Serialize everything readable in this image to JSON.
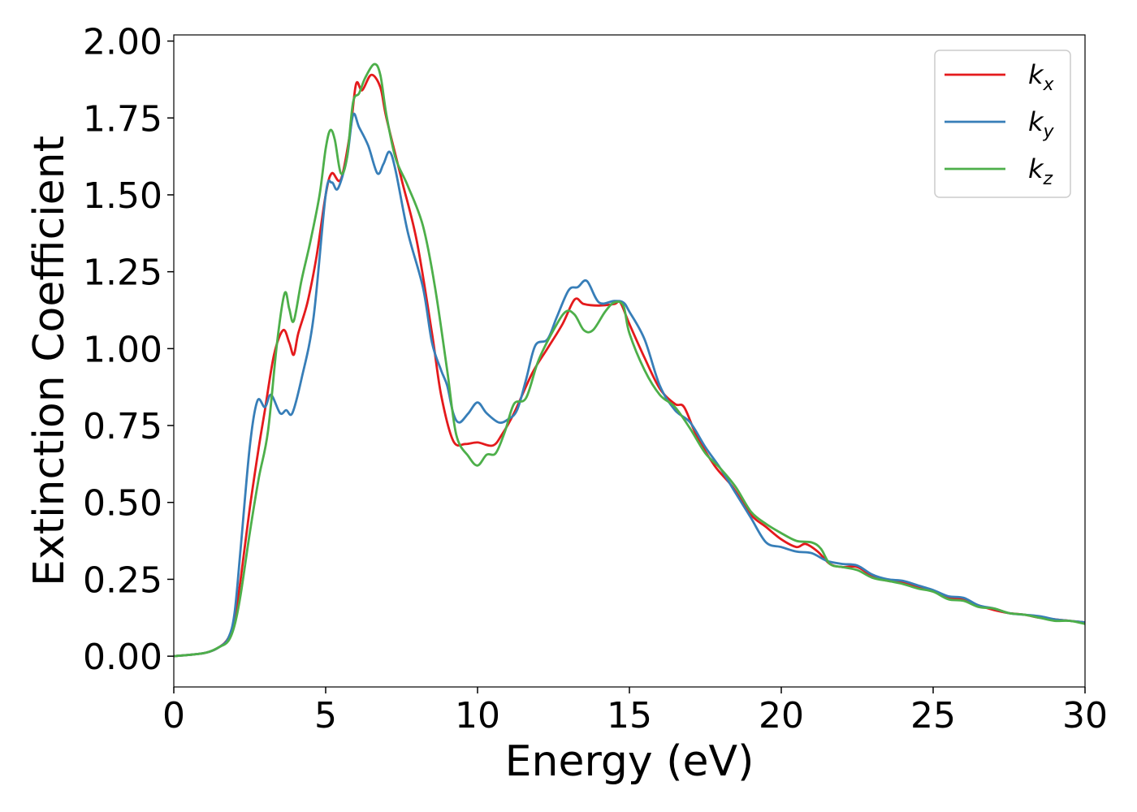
{
  "chart_data": {
    "type": "line",
    "xlabel": "Energy (eV)",
    "ylabel": "Extinction Coefficient",
    "xlim": [
      0,
      30
    ],
    "ylim": [
      -0.1,
      2.02
    ],
    "x_ticks": [
      "0",
      "5",
      "10",
      "15",
      "20",
      "25",
      "30"
    ],
    "y_ticks": [
      "0.00",
      "0.25",
      "0.50",
      "0.75",
      "1.00",
      "1.25",
      "1.50",
      "1.75",
      "2.00"
    ],
    "grid": false,
    "legend": "top-right",
    "series": [
      {
        "name": "k_x",
        "label_main": "k",
        "label_sub": "x",
        "color": "#e41a1c",
        "points": [
          [
            0,
            0.0
          ],
          [
            1,
            0.01
          ],
          [
            1.5,
            0.03
          ],
          [
            1.8,
            0.06
          ],
          [
            2.0,
            0.12
          ],
          [
            2.2,
            0.25
          ],
          [
            2.5,
            0.48
          ],
          [
            2.8,
            0.68
          ],
          [
            3.0,
            0.8
          ],
          [
            3.3,
            0.98
          ],
          [
            3.6,
            1.06
          ],
          [
            3.8,
            1.02
          ],
          [
            3.95,
            0.98
          ],
          [
            4.1,
            1.05
          ],
          [
            4.4,
            1.15
          ],
          [
            4.7,
            1.3
          ],
          [
            5.0,
            1.5
          ],
          [
            5.2,
            1.57
          ],
          [
            5.5,
            1.55
          ],
          [
            5.8,
            1.7
          ],
          [
            6.0,
            1.86
          ],
          [
            6.2,
            1.84
          ],
          [
            6.5,
            1.89
          ],
          [
            6.8,
            1.85
          ],
          [
            7.0,
            1.75
          ],
          [
            7.5,
            1.55
          ],
          [
            8.0,
            1.35
          ],
          [
            8.5,
            1.05
          ],
          [
            8.8,
            0.85
          ],
          [
            9.2,
            0.7
          ],
          [
            9.6,
            0.69
          ],
          [
            10.0,
            0.695
          ],
          [
            10.5,
            0.685
          ],
          [
            10.8,
            0.72
          ],
          [
            11.2,
            0.79
          ],
          [
            11.8,
            0.92
          ],
          [
            12.3,
            1.0
          ],
          [
            12.8,
            1.08
          ],
          [
            13.2,
            1.16
          ],
          [
            13.5,
            1.145
          ],
          [
            14.0,
            1.14
          ],
          [
            14.5,
            1.145
          ],
          [
            14.7,
            1.15
          ],
          [
            15.0,
            1.08
          ],
          [
            15.5,
            0.97
          ],
          [
            16.0,
            0.87
          ],
          [
            16.5,
            0.82
          ],
          [
            16.8,
            0.81
          ],
          [
            17.2,
            0.72
          ],
          [
            17.8,
            0.62
          ],
          [
            18.4,
            0.55
          ],
          [
            19.0,
            0.46
          ],
          [
            19.5,
            0.42
          ],
          [
            20.0,
            0.38
          ],
          [
            20.5,
            0.355
          ],
          [
            20.8,
            0.365
          ],
          [
            21.2,
            0.34
          ],
          [
            21.6,
            0.3
          ],
          [
            22.0,
            0.29
          ],
          [
            22.5,
            0.29
          ],
          [
            23.0,
            0.26
          ],
          [
            23.5,
            0.245
          ],
          [
            24.0,
            0.24
          ],
          [
            24.5,
            0.225
          ],
          [
            25.0,
            0.21
          ],
          [
            25.5,
            0.19
          ],
          [
            26.0,
            0.185
          ],
          [
            26.5,
            0.165
          ],
          [
            27.0,
            0.15
          ],
          [
            27.5,
            0.14
          ],
          [
            28.0,
            0.135
          ],
          [
            28.5,
            0.125
          ],
          [
            29.0,
            0.12
          ],
          [
            29.5,
            0.115
          ],
          [
            30.0,
            0.11
          ]
        ]
      },
      {
        "name": "k_y",
        "label_main": "k",
        "label_sub": "y",
        "color": "#377eb8",
        "points": [
          [
            0,
            0.0
          ],
          [
            1,
            0.01
          ],
          [
            1.5,
            0.03
          ],
          [
            1.8,
            0.06
          ],
          [
            2.0,
            0.14
          ],
          [
            2.2,
            0.35
          ],
          [
            2.5,
            0.68
          ],
          [
            2.75,
            0.83
          ],
          [
            3.0,
            0.81
          ],
          [
            3.2,
            0.85
          ],
          [
            3.5,
            0.79
          ],
          [
            3.7,
            0.8
          ],
          [
            3.9,
            0.79
          ],
          [
            4.2,
            0.9
          ],
          [
            4.6,
            1.1
          ],
          [
            5.0,
            1.5
          ],
          [
            5.2,
            1.54
          ],
          [
            5.4,
            1.52
          ],
          [
            5.7,
            1.62
          ],
          [
            5.9,
            1.76
          ],
          [
            6.1,
            1.72
          ],
          [
            6.4,
            1.66
          ],
          [
            6.7,
            1.57
          ],
          [
            6.9,
            1.6
          ],
          [
            7.1,
            1.64
          ],
          [
            7.3,
            1.58
          ],
          [
            7.7,
            1.38
          ],
          [
            8.2,
            1.2
          ],
          [
            8.5,
            1.02
          ],
          [
            8.8,
            0.93
          ],
          [
            9.0,
            0.88
          ],
          [
            9.2,
            0.79
          ],
          [
            9.4,
            0.76
          ],
          [
            9.7,
            0.79
          ],
          [
            10.0,
            0.825
          ],
          [
            10.3,
            0.79
          ],
          [
            10.7,
            0.76
          ],
          [
            11.0,
            0.77
          ],
          [
            11.3,
            0.8
          ],
          [
            11.6,
            0.9
          ],
          [
            11.9,
            1.01
          ],
          [
            12.3,
            1.03
          ],
          [
            12.6,
            1.1
          ],
          [
            13.0,
            1.19
          ],
          [
            13.3,
            1.2
          ],
          [
            13.6,
            1.22
          ],
          [
            14.0,
            1.15
          ],
          [
            14.5,
            1.155
          ],
          [
            14.8,
            1.15
          ],
          [
            15.0,
            1.12
          ],
          [
            15.5,
            1.03
          ],
          [
            16.0,
            0.88
          ],
          [
            16.5,
            0.8
          ],
          [
            17.0,
            0.76
          ],
          [
            17.5,
            0.68
          ],
          [
            18.0,
            0.61
          ],
          [
            18.5,
            0.53
          ],
          [
            19.0,
            0.45
          ],
          [
            19.5,
            0.37
          ],
          [
            20.0,
            0.355
          ],
          [
            20.5,
            0.34
          ],
          [
            21.0,
            0.335
          ],
          [
            21.5,
            0.31
          ],
          [
            22.0,
            0.3
          ],
          [
            22.5,
            0.295
          ],
          [
            23.0,
            0.265
          ],
          [
            23.5,
            0.25
          ],
          [
            24.0,
            0.245
          ],
          [
            24.5,
            0.23
          ],
          [
            25.0,
            0.215
          ],
          [
            25.5,
            0.195
          ],
          [
            26.0,
            0.19
          ],
          [
            26.5,
            0.165
          ],
          [
            27.0,
            0.155
          ],
          [
            27.5,
            0.14
          ],
          [
            28.0,
            0.135
          ],
          [
            28.5,
            0.13
          ],
          [
            29.0,
            0.12
          ],
          [
            29.5,
            0.115
          ],
          [
            30.0,
            0.11
          ]
        ]
      },
      {
        "name": "k_z",
        "label_main": "k",
        "label_sub": "z",
        "color": "#4daf4a",
        "points": [
          [
            0,
            0.0
          ],
          [
            1,
            0.01
          ],
          [
            1.5,
            0.03
          ],
          [
            1.8,
            0.05
          ],
          [
            2.0,
            0.1
          ],
          [
            2.2,
            0.2
          ],
          [
            2.5,
            0.4
          ],
          [
            2.8,
            0.58
          ],
          [
            3.1,
            0.73
          ],
          [
            3.4,
            1.02
          ],
          [
            3.65,
            1.18
          ],
          [
            3.8,
            1.13
          ],
          [
            3.95,
            1.09
          ],
          [
            4.2,
            1.22
          ],
          [
            4.5,
            1.35
          ],
          [
            4.8,
            1.5
          ],
          [
            5.0,
            1.65
          ],
          [
            5.15,
            1.71
          ],
          [
            5.3,
            1.68
          ],
          [
            5.5,
            1.57
          ],
          [
            5.7,
            1.62
          ],
          [
            5.9,
            1.8
          ],
          [
            6.1,
            1.83
          ],
          [
            6.3,
            1.88
          ],
          [
            6.6,
            1.925
          ],
          [
            6.8,
            1.89
          ],
          [
            7.0,
            1.76
          ],
          [
            7.3,
            1.62
          ],
          [
            7.7,
            1.53
          ],
          [
            8.2,
            1.4
          ],
          [
            8.6,
            1.2
          ],
          [
            9.0,
            0.93
          ],
          [
            9.3,
            0.72
          ],
          [
            9.7,
            0.65
          ],
          [
            10.0,
            0.62
          ],
          [
            10.3,
            0.655
          ],
          [
            10.6,
            0.66
          ],
          [
            10.9,
            0.73
          ],
          [
            11.2,
            0.82
          ],
          [
            11.6,
            0.84
          ],
          [
            12.0,
            0.96
          ],
          [
            12.5,
            1.06
          ],
          [
            12.9,
            1.12
          ],
          [
            13.2,
            1.11
          ],
          [
            13.5,
            1.06
          ],
          [
            13.8,
            1.06
          ],
          [
            14.2,
            1.12
          ],
          [
            14.5,
            1.15
          ],
          [
            14.8,
            1.14
          ],
          [
            15.0,
            1.05
          ],
          [
            15.5,
            0.93
          ],
          [
            16.0,
            0.85
          ],
          [
            16.5,
            0.81
          ],
          [
            17.0,
            0.74
          ],
          [
            17.5,
            0.66
          ],
          [
            18.0,
            0.61
          ],
          [
            18.5,
            0.55
          ],
          [
            19.0,
            0.47
          ],
          [
            19.5,
            0.43
          ],
          [
            20.0,
            0.4
          ],
          [
            20.5,
            0.375
          ],
          [
            21.0,
            0.37
          ],
          [
            21.3,
            0.35
          ],
          [
            21.6,
            0.3
          ],
          [
            22.0,
            0.29
          ],
          [
            22.5,
            0.28
          ],
          [
            23.0,
            0.255
          ],
          [
            23.5,
            0.245
          ],
          [
            24.0,
            0.235
          ],
          [
            24.5,
            0.22
          ],
          [
            25.0,
            0.21
          ],
          [
            25.5,
            0.185
          ],
          [
            26.0,
            0.18
          ],
          [
            26.5,
            0.16
          ],
          [
            27.0,
            0.155
          ],
          [
            27.5,
            0.14
          ],
          [
            28.0,
            0.135
          ],
          [
            28.5,
            0.125
          ],
          [
            29.0,
            0.115
          ],
          [
            29.5,
            0.115
          ],
          [
            30.0,
            0.105
          ]
        ]
      }
    ]
  }
}
